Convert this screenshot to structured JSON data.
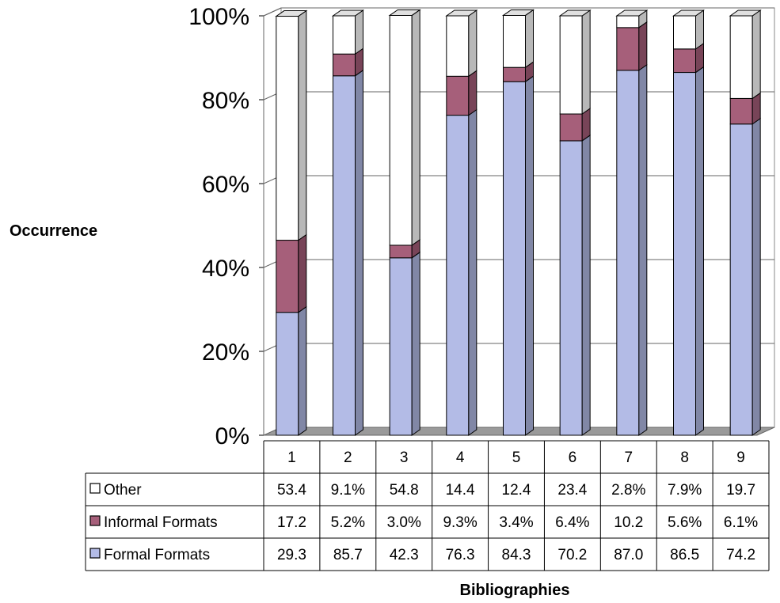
{
  "chart_data": {
    "type": "bar",
    "stacked": true,
    "percent_stacked": true,
    "three_d": true,
    "title": "",
    "xlabel": "Bibliographies",
    "ylabel": "Occurrence",
    "ylim": [
      0,
      100
    ],
    "yticks": [
      "0%",
      "20%",
      "40%",
      "60%",
      "80%",
      "100%"
    ],
    "categories": [
      "1",
      "2",
      "3",
      "4",
      "5",
      "6",
      "7",
      "8",
      "9"
    ],
    "series": [
      {
        "name": "Formal Formats",
        "color": "#b3bbe6",
        "values": [
          29.3,
          85.7,
          42.3,
          76.3,
          84.3,
          70.2,
          87.0,
          86.5,
          74.2
        ],
        "labels": [
          "29.3",
          "85.7",
          "42.3",
          "76.3",
          "84.3",
          "70.2",
          "87.0",
          "86.5",
          "74.2"
        ]
      },
      {
        "name": "Informal Formats",
        "color": "#a65f7a",
        "values": [
          17.2,
          5.2,
          3.0,
          9.3,
          3.4,
          6.4,
          10.2,
          5.6,
          6.1
        ],
        "labels": [
          "17.2",
          "5.2%",
          "3.0%",
          "9.3%",
          "3.4%",
          "6.4%",
          "10.2",
          "5.6%",
          "6.1%"
        ]
      },
      {
        "name": "Other",
        "color": "#ffffff",
        "values": [
          53.4,
          9.1,
          54.8,
          14.4,
          12.4,
          23.4,
          2.8,
          7.9,
          19.7
        ],
        "labels": [
          "53.4",
          "9.1%",
          "54.8",
          "14.4",
          "12.4",
          "23.4",
          "2.8%",
          "7.9%",
          "19.7"
        ]
      }
    ],
    "table_row_order": [
      "Other",
      "Informal Formats",
      "Formal Formats"
    ],
    "grid": true,
    "legend": "data-table"
  }
}
